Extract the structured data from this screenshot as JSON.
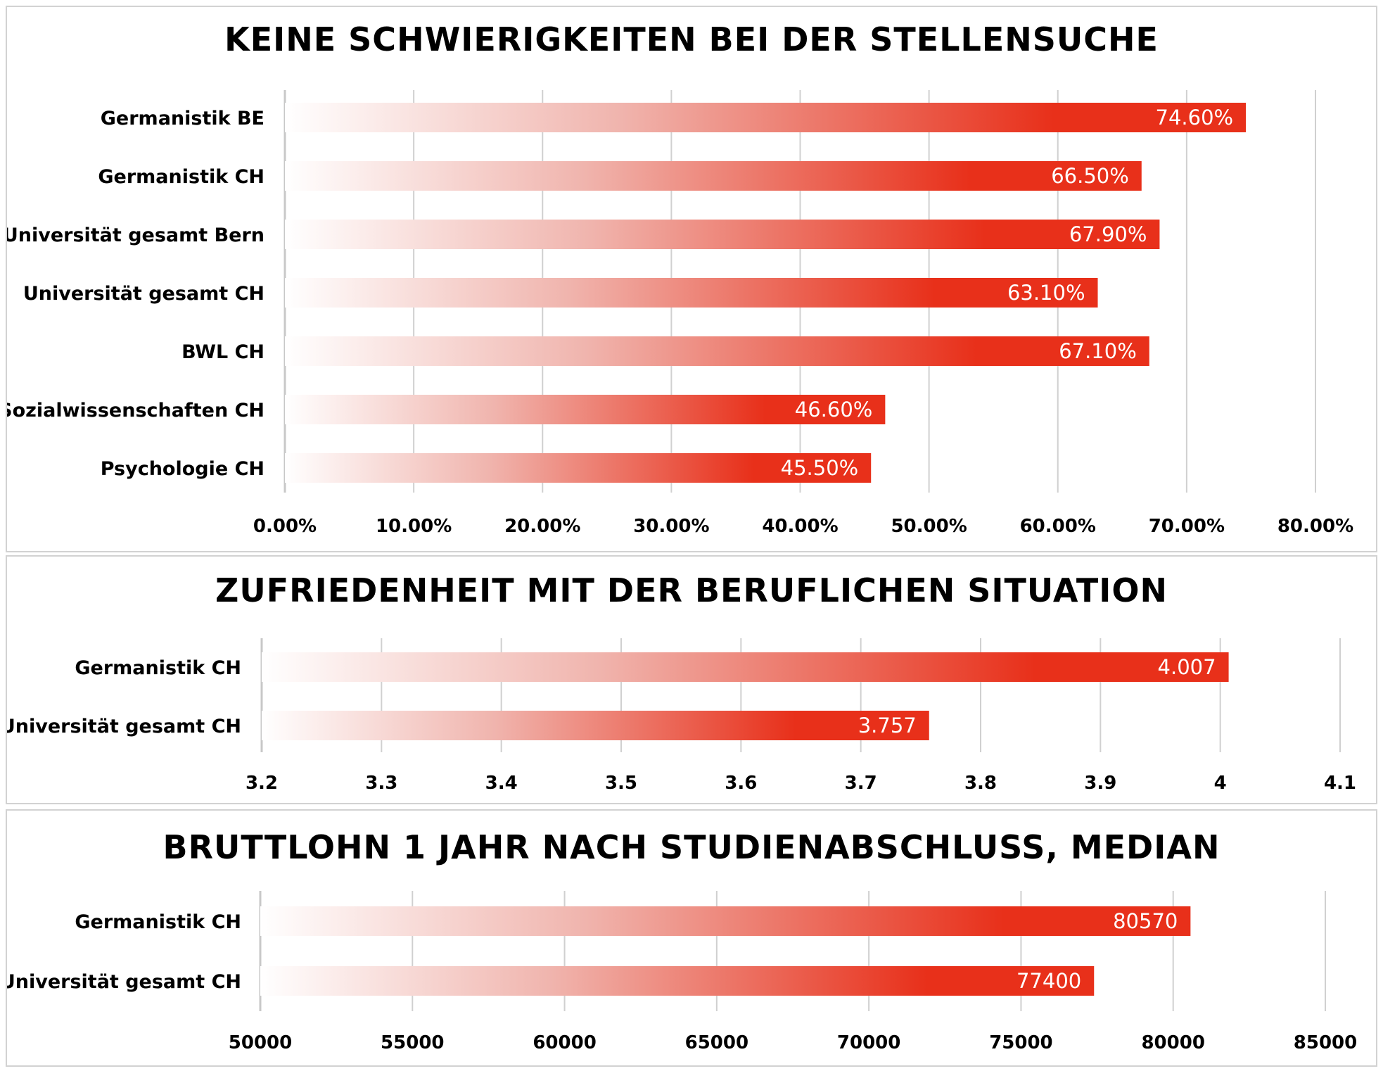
{
  "colors": {
    "bar_start": "#ffffff",
    "bar_end": "#e8301a",
    "grid": "#d0d0d0",
    "label": "#ffffff"
  },
  "chart_data": [
    {
      "type": "bar",
      "orientation": "horizontal",
      "title": "KEINE SCHWIERIGKEITEN BEI DER STELLENSUCHE",
      "categories": [
        "Germanistik BE",
        "Germanistik CH",
        "Universität gesamt Bern",
        "Universität gesamt CH",
        "BWL CH",
        "Sozialwissenschaften CH",
        "Psychologie CH"
      ],
      "values": [
        74.6,
        66.5,
        67.9,
        63.1,
        67.1,
        46.6,
        45.5
      ],
      "value_labels": [
        "74.60%",
        "66.50%",
        "67.90%",
        "63.10%",
        "67.10%",
        "46.60%",
        "45.50%"
      ],
      "xlim": [
        0,
        80
      ],
      "ticks": [
        0,
        10,
        20,
        30,
        40,
        50,
        60,
        70,
        80
      ],
      "tick_labels": [
        "0.00%",
        "10.00%",
        "20.00%",
        "30.00%",
        "40.00%",
        "50.00%",
        "60.00%",
        "70.00%",
        "80.00%"
      ],
      "grid": true
    },
    {
      "type": "bar",
      "orientation": "horizontal",
      "title": "ZUFRIEDENHEIT MIT DER BERUFLICHEN SITUATION",
      "categories": [
        "Germanistik CH",
        "Universität gesamt CH"
      ],
      "values": [
        4.007,
        3.757
      ],
      "value_labels": [
        "4.007",
        "3.757"
      ],
      "xlim": [
        3.2,
        4.1
      ],
      "ticks": [
        3.2,
        3.3,
        3.4,
        3.5,
        3.6,
        3.7,
        3.8,
        3.9,
        4.0,
        4.1
      ],
      "tick_labels": [
        "3.2",
        "3.3",
        "3.4",
        "3.5",
        "3.6",
        "3.7",
        "3.8",
        "3.9",
        "4",
        "4.1"
      ],
      "grid": true
    },
    {
      "type": "bar",
      "orientation": "horizontal",
      "title": "BRUTTLOHN 1 JAHR NACH STUDIENABSCHLUSS, MEDIAN",
      "categories": [
        "Germanistik CH",
        "Universität gesamt CH"
      ],
      "values": [
        80570,
        77400
      ],
      "value_labels": [
        "80570",
        "77400"
      ],
      "xlim": [
        50000,
        85000
      ],
      "ticks": [
        50000,
        55000,
        60000,
        65000,
        70000,
        75000,
        80000,
        85000
      ],
      "tick_labels": [
        "50000",
        "55000",
        "60000",
        "65000",
        "70000",
        "75000",
        "80000",
        "85000"
      ],
      "grid": true
    }
  ]
}
